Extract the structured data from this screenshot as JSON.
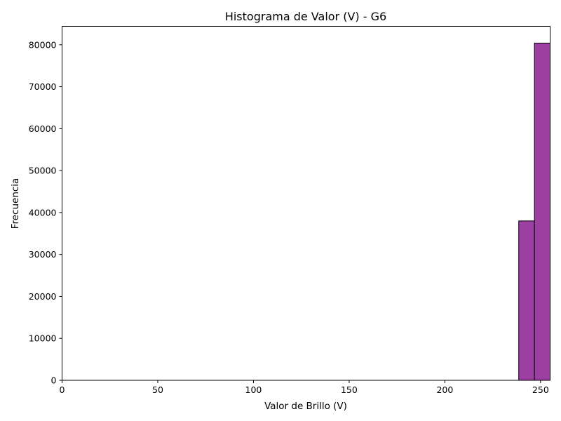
{
  "chart_data": {
    "type": "bar",
    "title": "Histograma de Valor (V) - G6",
    "xlabel": "Valor de Brillo (V)",
    "ylabel": "Frecuencia",
    "xlim": [
      0,
      255
    ],
    "ylim": [
      0,
      84400
    ],
    "grid": false,
    "legend": "none",
    "x_ticks": [
      0,
      50,
      100,
      150,
      200,
      250
    ],
    "y_ticks": [
      0,
      10000,
      20000,
      30000,
      40000,
      50000,
      60000,
      70000,
      80000
    ],
    "bins": [
      {
        "x0": 238.6,
        "x1": 246.8,
        "value": 38000
      },
      {
        "x0": 246.8,
        "x1": 255.0,
        "value": 80400
      }
    ],
    "colors": {
      "bar_fill": "#9b3fa1",
      "bar_edge": "#000000"
    }
  }
}
